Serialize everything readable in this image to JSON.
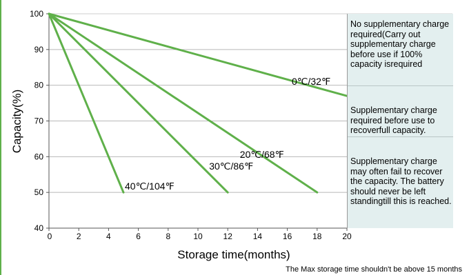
{
  "chart_data": {
    "type": "line",
    "xlabel": "Storage time(months)",
    "ylabel": "Capacity(%)",
    "xlim": [
      0,
      20
    ],
    "ylim": [
      40,
      100
    ],
    "x_ticks": [
      "0",
      "2",
      "4",
      "6",
      "8",
      "10",
      "12",
      "14",
      "16",
      "18",
      "20"
    ],
    "y_ticks": [
      "40",
      "50",
      "60",
      "70",
      "80",
      "90",
      "100"
    ],
    "grid": "horizontal",
    "line_color": "#5fb04a",
    "series": [
      {
        "name": "0℃/32℉",
        "x": [
          0,
          20
        ],
        "y": [
          100,
          77
        ]
      },
      {
        "name": "20℃/68℉",
        "x": [
          0,
          18
        ],
        "y": [
          100,
          50
        ]
      },
      {
        "name": "30℃/86℉",
        "x": [
          0,
          12
        ],
        "y": [
          100,
          50
        ]
      },
      {
        "name": "40℃/104℉",
        "x": [
          0,
          5
        ],
        "y": [
          100,
          50
        ]
      }
    ]
  },
  "zones": [
    {
      "text": "No supplementary charge required(Carry out supplementary charge before use if 100% capacity isrequired"
    },
    {
      "text": "Supplementary charge required before use to recoverfull capacity."
    },
    {
      "text": "Supplementary charge may often fail to recover the capacity. The battery should never be left standingtill this is reached."
    }
  ],
  "footnote": "The Max storage time shouldn't be above 15 months"
}
